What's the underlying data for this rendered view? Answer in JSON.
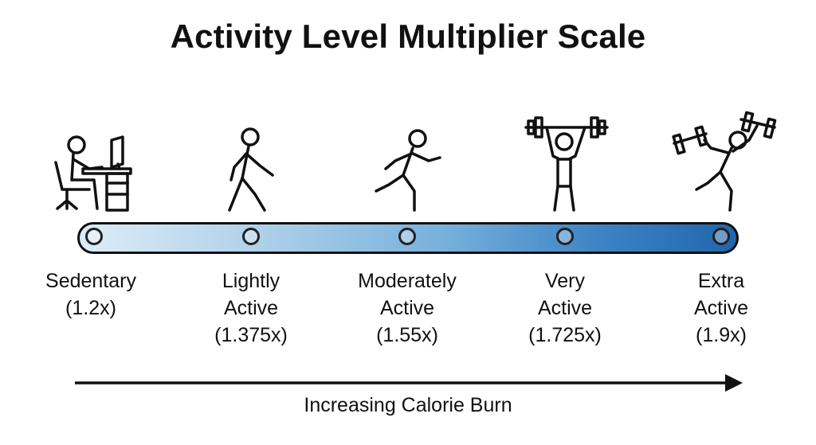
{
  "title": "Activity Level Multiplier Scale",
  "levels": [
    {
      "line1": "Sedentary",
      "line2": "",
      "multiplier": "(1.2x)",
      "icon": "person-at-desk-icon"
    },
    {
      "line1": "Lightly",
      "line2": "Active",
      "multiplier": "(1.375x)",
      "icon": "walking-person-icon"
    },
    {
      "line1": "Moderately",
      "line2": "Active",
      "multiplier": "(1.55x)",
      "icon": "running-person-icon"
    },
    {
      "line1": "Very",
      "line2": "Active",
      "multiplier": "(1.725x)",
      "icon": "weightlifter-icon"
    },
    {
      "line1": "Extra",
      "line2": "Active",
      "multiplier": "(1.9x)",
      "icon": "dumbbell-athlete-icon"
    }
  ],
  "arrow_caption": "Increasing Calorie Burn",
  "colors": {
    "gradient_start": "#dcedf7",
    "gradient_end": "#2166ac",
    "outline": "#111111"
  }
}
